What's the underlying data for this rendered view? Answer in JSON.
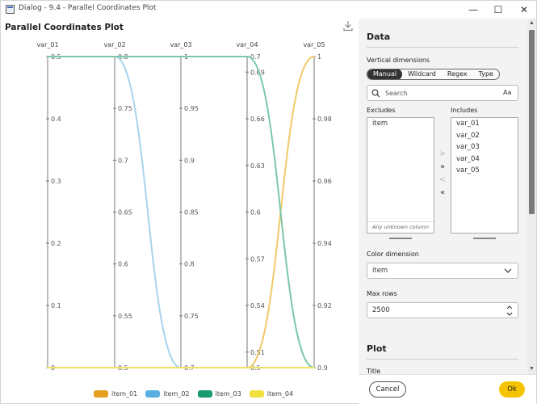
{
  "window": {
    "title": "Dialog - 9.4 - Parallel Coordinates Plot",
    "minimize_glyph": "—",
    "maximize_glyph": "☐",
    "close_glyph": "✕"
  },
  "plot": {
    "title": "Parallel Coordinates Plot",
    "download_icon": "download-icon"
  },
  "chart_data": {
    "type": "parallel-coordinates",
    "dimensions": [
      {
        "name": "var_01",
        "min": 0,
        "max": 0.5,
        "ticks": [
          "0.5",
          "0.4",
          "0.3",
          "0.2",
          "0.1",
          "0"
        ],
        "tick_values": [
          0.5,
          0.4,
          0.3,
          0.2,
          0.1,
          0
        ]
      },
      {
        "name": "var_02",
        "min": 0.5,
        "max": 0.8,
        "ticks": [
          "0.8",
          "0.75",
          "0.7",
          "0.65",
          "0.6",
          "0.55",
          "0.5"
        ],
        "tick_values": [
          0.8,
          0.75,
          0.7,
          0.65,
          0.6,
          0.55,
          0.5
        ]
      },
      {
        "name": "var_03",
        "min": 0.7,
        "max": 1,
        "ticks": [
          "1",
          "0.95",
          "0.9",
          "0.85",
          "0.8",
          "0.75",
          "0.7"
        ],
        "tick_values": [
          1,
          0.95,
          0.9,
          0.85,
          0.8,
          0.75,
          0.7
        ]
      },
      {
        "name": "var_04",
        "min": 0.5,
        "max": 0.7,
        "ticks": [
          "0.7",
          "0.69",
          "0.66",
          "0.63",
          "0.6",
          "0.57",
          "0.54",
          "0.51",
          "0.5"
        ],
        "tick_values": [
          0.7,
          0.69,
          0.66,
          0.63,
          0.6,
          0.57,
          0.54,
          0.51,
          0.5
        ]
      },
      {
        "name": "var_05",
        "min": 0.9,
        "max": 1,
        "ticks": [
          "1",
          "0.98",
          "0.96",
          "0.94",
          "0.92",
          "0.9"
        ],
        "tick_values": [
          1,
          0.98,
          0.96,
          0.94,
          0.92,
          0.9
        ]
      }
    ],
    "series": [
      {
        "name": "item_01",
        "color": "#f0c96a",
        "values": [
          0,
          0.5,
          0.7,
          0.5,
          1
        ]
      },
      {
        "name": "item_02",
        "color": "#a8d4ec",
        "values": [
          0.5,
          0.8,
          0.7,
          0.5,
          0.9
        ]
      },
      {
        "name": "item_03",
        "color": "#7cc8a8",
        "values": [
          0.5,
          0.8,
          1,
          0.7,
          0.9
        ]
      },
      {
        "name": "item_04",
        "color": "#f0e06a",
        "values": [
          0,
          0.5,
          0.7,
          0.5,
          0.9
        ]
      }
    ],
    "legend": [
      {
        "name": "item_01",
        "color": "#e6a020"
      },
      {
        "name": "item_02",
        "color": "#5aafe0"
      },
      {
        "name": "item_03",
        "color": "#1a9a70"
      },
      {
        "name": "item_04",
        "color": "#f0e040"
      }
    ],
    "legend_position": "bottom",
    "grid": false
  },
  "panel": {
    "data_title": "Data",
    "vertical_dimensions_label": "Vertical dimensions",
    "modes": [
      "Manual",
      "Wildcard",
      "Regex",
      "Type"
    ],
    "active_mode": "Manual",
    "search_placeholder": "Search",
    "case_toggle": "Aa",
    "excludes_label": "Excludes",
    "includes_label": "Includes",
    "excludes": [
      "item"
    ],
    "includes": [
      "var_01",
      "var_02",
      "var_03",
      "var_04",
      "var_05"
    ],
    "unknown_column": "Any unknown column",
    "move_buttons": [
      ">",
      "»",
      "<",
      "«"
    ],
    "color_dimension_label": "Color dimension",
    "color_dimension_value": "item",
    "max_rows_label": "Max rows",
    "max_rows_value": "2500",
    "plot_title": "Plot",
    "title_label": "Title"
  },
  "footer": {
    "cancel_label": "Cancel",
    "ok_label": "Ok"
  },
  "colors": {
    "accent": "#f5c400",
    "active_segment": "#333333"
  }
}
